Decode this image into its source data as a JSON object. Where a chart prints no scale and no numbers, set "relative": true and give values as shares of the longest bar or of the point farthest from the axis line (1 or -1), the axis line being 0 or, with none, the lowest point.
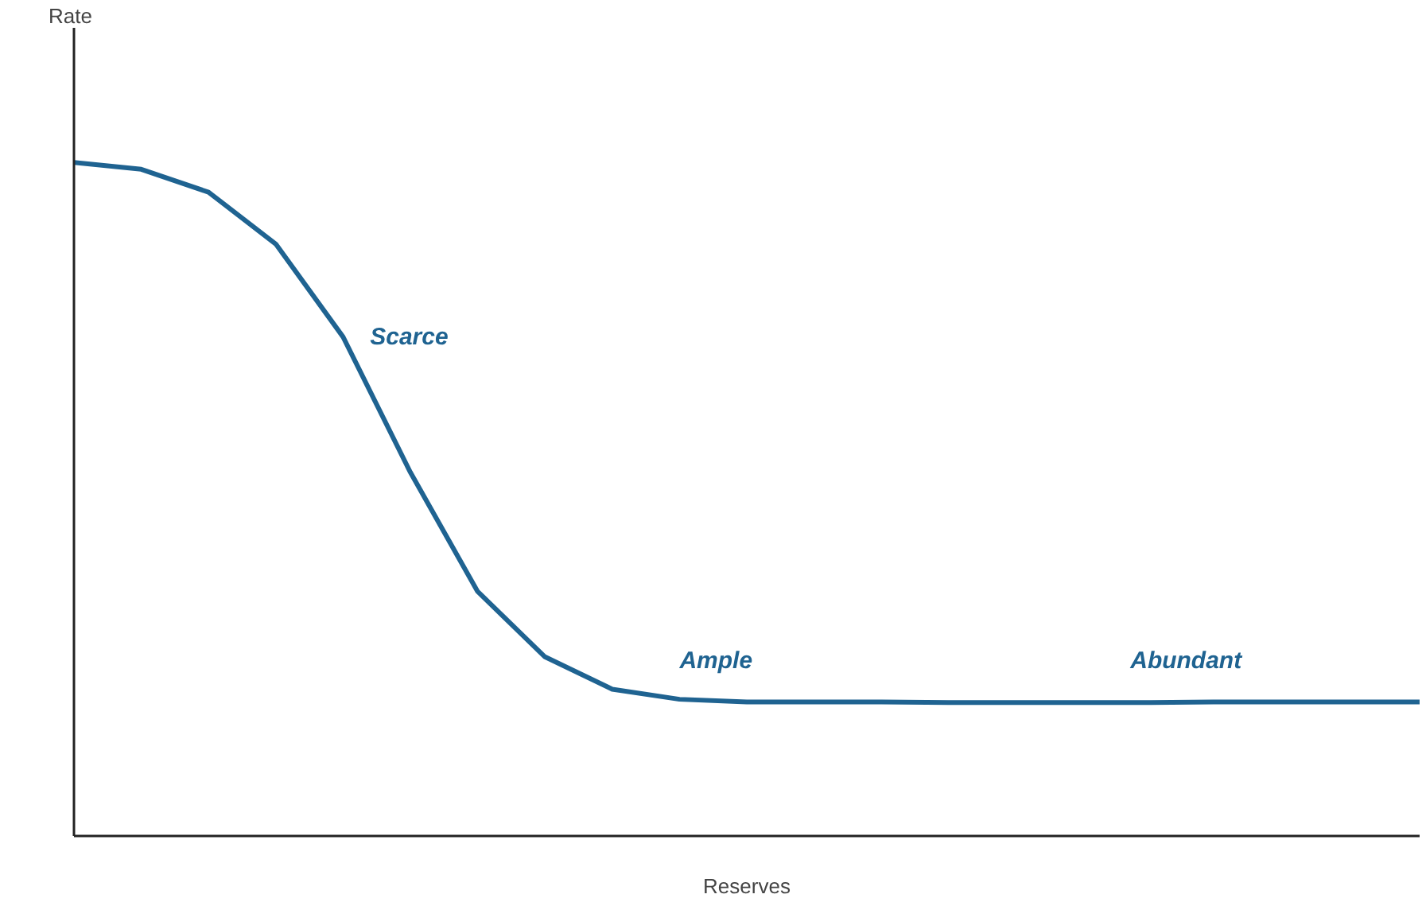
{
  "chart_data": {
    "type": "line",
    "relative": true,
    "xlabel": "Reserves",
    "categories": [
      null,
      null,
      null,
      null,
      null,
      null,
      null,
      null,
      null,
      null,
      null,
      null,
      null,
      null,
      null,
      null,
      null,
      null,
      null,
      null,
      null
    ],
    "series": [
      {
        "color": "#1f6391",
        "values": [
          1.0,
          0.99,
          0.956,
          0.879,
          0.741,
          0.54,
          0.363,
          0.266,
          0.218,
          0.203,
          0.199,
          0.199,
          0.199,
          0.198,
          0.198,
          0.198,
          0.198,
          0.199,
          0.199,
          0.199,
          0.199
        ]
      }
    ],
    "annotations": [
      "Rate",
      "Scarce",
      "Ample",
      "Abundant"
    ],
    "grid": false,
    "marker": "none",
    "line_style": "solid"
  }
}
